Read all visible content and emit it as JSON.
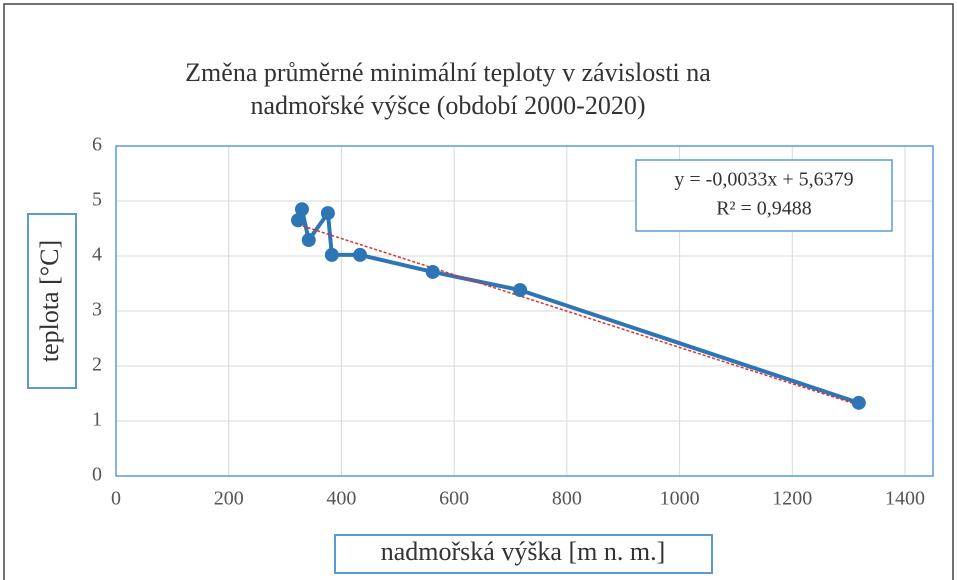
{
  "chart_data": {
    "type": "scatter",
    "title": [
      "Změna průměrné minimální teploty v závislosti na",
      "nadmořské výšce (období 2000-2020)"
    ],
    "x_label": "nadmořská výška [m n. m.]",
    "y_label": "teplota [°C]",
    "series": [
      {
        "color": "#2e75b6",
        "x": [
          323,
          330,
          342,
          376,
          383,
          433,
          562,
          717,
          1318
        ],
        "values": [
          4.65,
          4.85,
          4.29,
          4.78,
          4.02,
          4.02,
          3.71,
          3.38,
          1.33
        ]
      }
    ],
    "trendline": {
      "slope": -0.0033,
      "intercept": 5.6379,
      "color": "#e0302a",
      "label": [
        "y = -0,0033x + 5,6379",
        "R² = 0,9488"
      ]
    },
    "xlim": [
      0,
      1400
    ],
    "xticks": [
      0,
      200,
      400,
      600,
      800,
      1000,
      1200,
      1400
    ],
    "ylim": [
      0,
      6
    ],
    "yticks": [
      0,
      1,
      2,
      3,
      4,
      5,
      6
    ],
    "grid": true
  }
}
